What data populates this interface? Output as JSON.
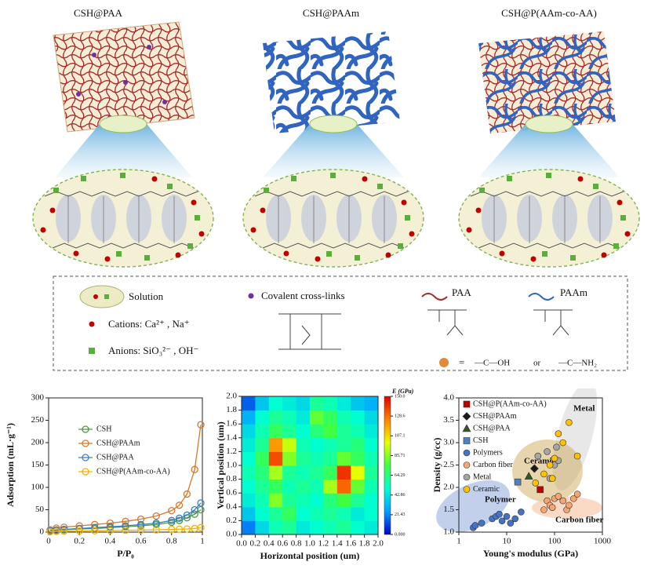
{
  "panels": [
    {
      "title": "CSH@PAA"
    },
    {
      "title": "CSH@PAAm"
    },
    {
      "title": "CSH@P(AAm-co-AA)"
    }
  ],
  "legend": {
    "solution": "Solution",
    "cations": "Cations: Ca²⁺ , Na⁺",
    "anions": "Anions: SiO₃²⁻ , OH⁻",
    "crosslinks": "Covalent cross-links",
    "paa": "PAA",
    "paam": "PAAm",
    "equals": "=",
    "carboxyl": "—C—OH",
    "or": "or",
    "amide": "—C—NH₂"
  },
  "chart_data": [
    {
      "type": "line",
      "xlabel": "P/P₀",
      "ylabel": "Adsorption (mL·g⁻¹)",
      "legend": "upper left",
      "x": [
        0.01,
        0.05,
        0.1,
        0.2,
        0.3,
        0.4,
        0.5,
        0.6,
        0.7,
        0.8,
        0.85,
        0.9,
        0.95,
        0.99
      ],
      "xlim": [
        0,
        1
      ],
      "xticks": [
        0,
        0.2,
        0.4,
        0.6,
        0.8,
        1
      ],
      "ylim": [
        0,
        300
      ],
      "yticks": [
        0,
        50,
        100,
        150,
        200,
        250,
        300
      ],
      "series": [
        {
          "name": "CSH",
          "color": "#4e9a3a",
          "values": [
            2,
            4,
            5,
            7,
            8,
            10,
            12,
            14,
            17,
            22,
            26,
            32,
            40,
            50
          ]
        },
        {
          "name": "CSH@PAAm",
          "color": "#d9772b",
          "values": [
            5,
            9,
            11,
            14,
            17,
            20,
            24,
            29,
            36,
            48,
            60,
            85,
            140,
            240
          ]
        },
        {
          "name": "CSH@PAA",
          "color": "#3d7fc0",
          "values": [
            3,
            5,
            6,
            8,
            10,
            12,
            14,
            17,
            20,
            26,
            31,
            38,
            50,
            65
          ]
        },
        {
          "name": "CSH@P(AAm-co-AA)",
          "color": "#f0b400",
          "values": [
            1,
            1.5,
            2,
            2.5,
            3,
            3.5,
            4,
            4.5,
            5,
            6,
            6.5,
            7,
            8,
            10
          ]
        }
      ]
    },
    {
      "type": "heatmap",
      "xlabel": "Horizontal position (um)",
      "ylabel": "Vertical position (um)",
      "colorbar_title": "E (GPa)",
      "x": [
        0.1,
        0.3,
        0.5,
        0.7,
        0.9,
        1.1,
        1.3,
        1.5,
        1.7,
        1.9
      ],
      "y": [
        0.1,
        0.3,
        0.5,
        0.7,
        0.9,
        1.1,
        1.3,
        1.5,
        1.7,
        1.9
      ],
      "xlim": [
        0,
        2
      ],
      "ylim": [
        0,
        2
      ],
      "xticks": [
        {
          "value": 0,
          "label": "0.0"
        },
        0.2,
        0.4,
        0.6,
        0.8,
        {
          "value": 1,
          "label": "1.0"
        },
        1.2,
        1.4,
        1.6,
        1.8,
        {
          "value": 2,
          "label": "2.0"
        }
      ],
      "yticks": [
        {
          "value": 0,
          "label": "0.0"
        },
        0.2,
        0.4,
        0.6,
        0.8,
        {
          "value": 1,
          "label": "1.0"
        },
        1.2,
        1.4,
        1.6,
        1.8,
        {
          "value": 2,
          "label": "2.0"
        }
      ],
      "zlim": [
        0,
        150
      ],
      "zticks": [
        {
          "value": 0,
          "label": "0.000"
        },
        21.43,
        42.86,
        64.29,
        85.71,
        107.1,
        128.6,
        {
          "value": 150,
          "label": "150.0"
        }
      ],
      "colorscale": [
        "#0000c8",
        "#00a0ff",
        "#00ffd0",
        "#40ff40",
        "#e8ff00",
        "#ff8000",
        "#e00000"
      ],
      "z": [
        [
          20,
          40,
          55,
          60,
          45,
          50,
          55,
          60,
          50,
          45
        ],
        [
          35,
          50,
          60,
          70,
          50,
          55,
          60,
          55,
          45,
          50
        ],
        [
          45,
          55,
          85,
          60,
          55,
          50,
          65,
          75,
          60,
          50
        ],
        [
          50,
          60,
          70,
          55,
          60,
          55,
          90,
          130,
          80,
          55
        ],
        [
          55,
          65,
          90,
          60,
          55,
          60,
          70,
          140,
          100,
          60
        ],
        [
          50,
          70,
          135,
          85,
          60,
          55,
          60,
          80,
          70,
          55
        ],
        [
          45,
          60,
          120,
          95,
          55,
          50,
          55,
          60,
          65,
          50
        ],
        [
          40,
          55,
          70,
          60,
          50,
          65,
          75,
          60,
          55,
          45
        ],
        [
          30,
          50,
          60,
          55,
          45,
          80,
          70,
          55,
          50,
          40
        ],
        [
          15,
          35,
          50,
          45,
          40,
          60,
          55,
          45,
          35,
          30
        ]
      ]
    },
    {
      "type": "scatter",
      "xlabel": "Young's modulus (GPa)",
      "ylabel": "Density (g/cc)",
      "xscale": "log",
      "legend": "upper left",
      "xlim": [
        1,
        1000
      ],
      "xticks": [
        1,
        10,
        100,
        1000
      ],
      "ylim": [
        1,
        4
      ],
      "yticks": [
        {
          "value": 1,
          "label": "1.0"
        },
        1.5,
        {
          "value": 2,
          "label": "2.0"
        },
        2.5,
        {
          "value": 3,
          "label": "3.0"
        },
        3.5,
        {
          "value": 4,
          "label": "4.0"
        }
      ],
      "annotations": [
        "Metal",
        "Ceramic",
        "Polymer",
        "Carbon fiber"
      ],
      "series": [
        {
          "name": "CSH@P(AAm-co-AA)",
          "color": "#c00000",
          "marker": "square",
          "x": [
            50
          ],
          "values": [
            1.95
          ]
        },
        {
          "name": "CSH@PAAm",
          "color": "#1a1a1a",
          "marker": "diamond",
          "x": [
            38
          ],
          "values": [
            2.42
          ]
        },
        {
          "name": "CSH@PAA",
          "color": "#375623",
          "marker": "triangle",
          "x": [
            29
          ],
          "values": [
            2.25
          ]
        },
        {
          "name": "CSH",
          "color": "#4f81bd",
          "marker": "square",
          "x": [
            17
          ],
          "values": [
            2.12
          ]
        },
        {
          "name": "Polymers",
          "color": "#4472c4",
          "marker": "circle",
          "x": [
            2,
            2.2,
            3,
            5,
            6,
            7,
            8,
            10,
            12,
            15,
            20
          ],
          "values": [
            1.1,
            1.15,
            1.2,
            1.3,
            1.35,
            1.4,
            1.25,
            1.35,
            1.2,
            1.3,
            1.45
          ]
        },
        {
          "name": "Carbon fiber",
          "color": "#f4a672",
          "marker": "circle",
          "x": [
            60,
            70,
            80,
            90,
            100,
            120,
            150,
            180,
            200,
            250,
            300
          ],
          "values": [
            1.5,
            1.7,
            1.6,
            1.55,
            1.75,
            1.8,
            1.7,
            1.5,
            1.6,
            1.75,
            1.85
          ]
        },
        {
          "name": "Metal",
          "color": "#a5a5a5",
          "marker": "circle",
          "x": [
            45,
            70,
            80,
            100,
            110,
            120
          ],
          "values": [
            2.7,
            2.8,
            2.2,
            2.5,
            2.9,
            2.6
          ]
        },
        {
          "name": "Ceramic",
          "color": "#ffc000",
          "marker": "circle",
          "x": [
            40,
            60,
            80,
            90,
            100,
            120,
            150,
            200,
            300
          ],
          "values": [
            2.1,
            2.3,
            2.5,
            2.2,
            2.65,
            3.2,
            3.0,
            3.45,
            2.7
          ]
        }
      ]
    }
  ]
}
